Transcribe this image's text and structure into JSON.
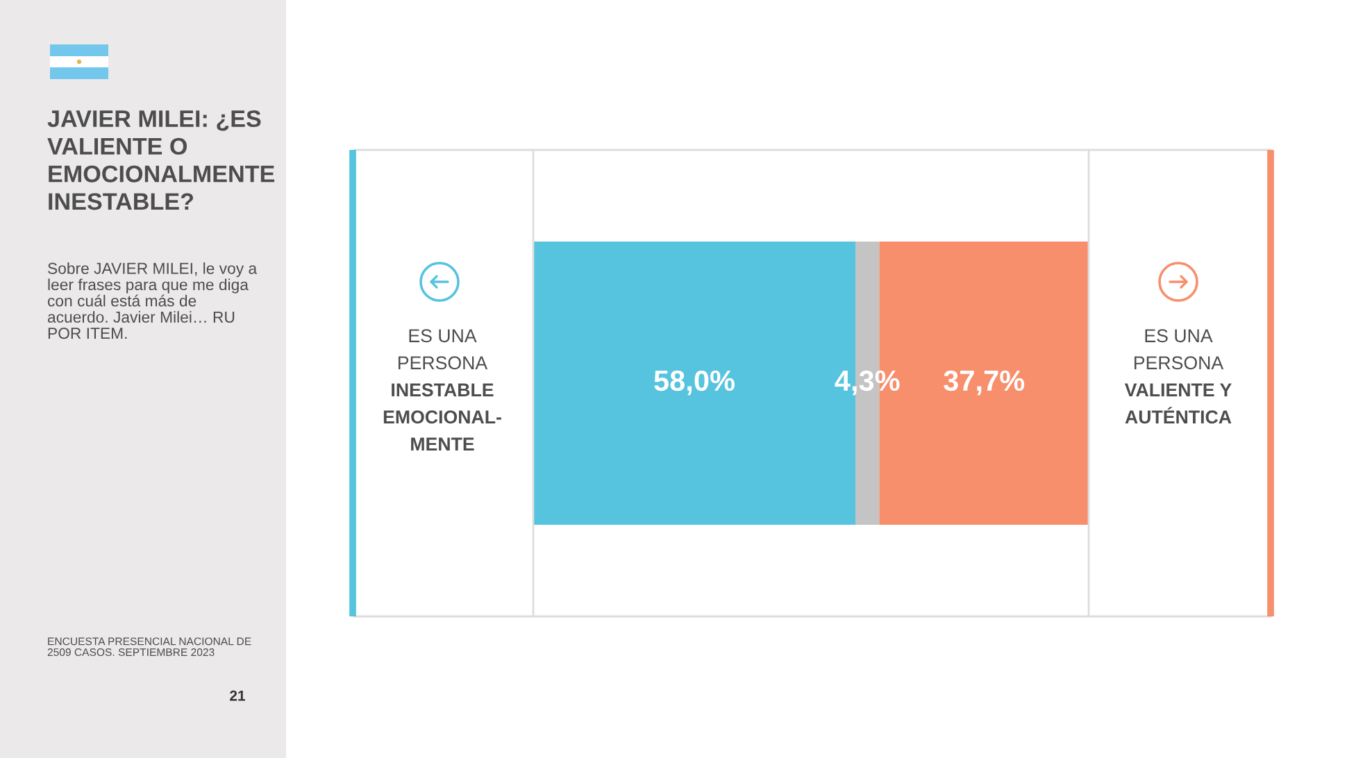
{
  "chart_data": {
    "type": "bar",
    "orientation": "horizontal",
    "stacked": true,
    "tick_labels": false,
    "title": "JAVIER MILEI: ¿ES\nVALIENTE O\nEMOCIONALMENTE\nINESTABLE?",
    "subtitle": "Sobre JAVIER MILEI, le voy a\nleer frases para que me diga\ncon cuál está más de\nacuerdo. Javier Milei… RU\nPOR ITEM.",
    "categories": [
      null
    ],
    "series": [
      {
        "name": "ES UNA\nPERSONA\nINESTABLE\nEMOCIONAL-\nMENTE",
        "color": "#56c3df",
        "values": [
          58.0
        ],
        "value_labels": [
          "58,0%"
        ]
      },
      {
        "color": "#c4c4c4",
        "values": [
          4.3
        ],
        "value_labels": [
          "4,3%"
        ]
      },
      {
        "name": "ES UNA\nPERSONA\nVALIENTE Y\nAUTÉNTICA",
        "color": "#f78f6d",
        "values": [
          37.7
        ],
        "value_labels": [
          "37,7%"
        ]
      }
    ],
    "annotations": [
      "ENCUESTA PRESENCIAL NACIONAL DE\n2509 CASOS. SEPTIEMBRE 2023",
      "21"
    ]
  }
}
